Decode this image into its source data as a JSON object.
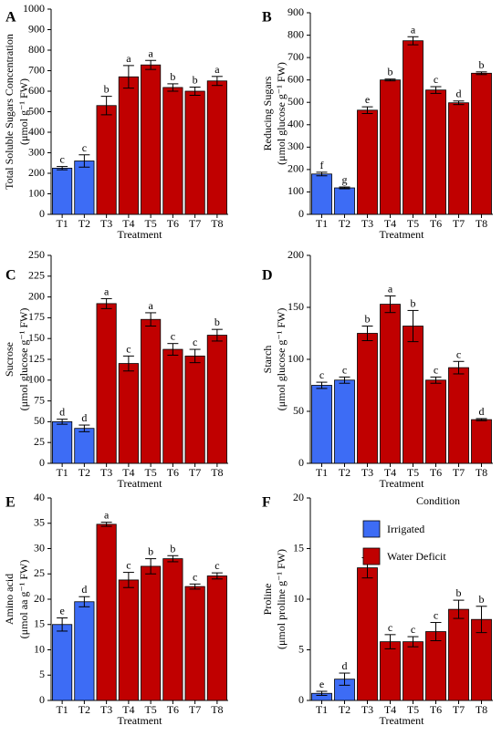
{
  "colors": {
    "irrigated": "#3d6cf5",
    "deficit": "#c00000"
  },
  "legend": {
    "title": "Condition",
    "items": [
      {
        "label": "Irrigated",
        "color": "#3d6cf5"
      },
      {
        "label": "Water Deficit",
        "color": "#c00000"
      }
    ]
  },
  "chart_data": [
    {
      "type": "bar",
      "panel": "A",
      "categories": [
        "T1",
        "T2",
        "T3",
        "T4",
        "T5",
        "T6",
        "T7",
        "T8"
      ],
      "values": [
        225,
        260,
        530,
        670,
        728,
        618,
        600,
        650
      ],
      "errors": [
        8,
        30,
        45,
        55,
        22,
        18,
        20,
        22
      ],
      "letters": [
        "c",
        "c",
        "b",
        "a",
        "a",
        "b",
        "b",
        "a"
      ],
      "groups": [
        "irrigated",
        "irrigated",
        "deficit",
        "deficit",
        "deficit",
        "deficit",
        "deficit",
        "deficit"
      ],
      "ylim": [
        0,
        1000
      ],
      "yticks": [
        0,
        100,
        200,
        300,
        400,
        500,
        600,
        700,
        800,
        900,
        1000
      ],
      "xlabel": "Treatment",
      "ylabel": [
        "Total Soluble Sugars Concentration",
        "(μmol g⁻¹ FW)"
      ]
    },
    {
      "type": "bar",
      "panel": "B",
      "categories": [
        "T1",
        "T2",
        "T3",
        "T4",
        "T5",
        "T6",
        "T7",
        "T8"
      ],
      "values": [
        180,
        118,
        465,
        600,
        775,
        555,
        498,
        630
      ],
      "errors": [
        8,
        4,
        15,
        4,
        18,
        15,
        8,
        6
      ],
      "letters": [
        "f",
        "g",
        "e",
        "b",
        "a",
        "c",
        "d",
        "b"
      ],
      "groups": [
        "irrigated",
        "irrigated",
        "deficit",
        "deficit",
        "deficit",
        "deficit",
        "deficit",
        "deficit"
      ],
      "ylim": [
        0,
        900
      ],
      "yticks": [
        0,
        100,
        200,
        300,
        400,
        500,
        600,
        700,
        800,
        900
      ],
      "xlabel": "Treatment",
      "ylabel": [
        "Reducing Sugars",
        "(μmol glucose g⁻¹ FW)"
      ]
    },
    {
      "type": "bar",
      "panel": "C",
      "categories": [
        "T1",
        "T2",
        "T3",
        "T4",
        "T5",
        "T6",
        "T7",
        "T8"
      ],
      "values": [
        50,
        42,
        192,
        120,
        173,
        137,
        129,
        154
      ],
      "errors": [
        3,
        4,
        6,
        9,
        8,
        7,
        8,
        7
      ],
      "letters": [
        "d",
        "d",
        "a",
        "c",
        "a",
        "c",
        "c",
        "b"
      ],
      "groups": [
        "irrigated",
        "irrigated",
        "deficit",
        "deficit",
        "deficit",
        "deficit",
        "deficit",
        "deficit"
      ],
      "ylim": [
        0,
        250
      ],
      "yticks": [
        0,
        25,
        50,
        75,
        100,
        125,
        150,
        175,
        200,
        225,
        250
      ],
      "xlabel": "Treatment",
      "ylabel": [
        "Sucrose",
        "(μmol glucose g⁻¹ FW)"
      ]
    },
    {
      "type": "bar",
      "panel": "D",
      "categories": [
        "T1",
        "T2",
        "T3",
        "T4",
        "T5",
        "T6",
        "T7",
        "T8"
      ],
      "values": [
        75,
        80,
        125,
        153,
        132,
        80,
        92,
        42
      ],
      "errors": [
        3,
        3,
        7,
        8,
        15,
        3,
        6,
        1
      ],
      "letters": [
        "c",
        "c",
        "b",
        "a",
        "b",
        "c",
        "c",
        "d"
      ],
      "groups": [
        "irrigated",
        "irrigated",
        "deficit",
        "deficit",
        "deficit",
        "deficit",
        "deficit",
        "deficit"
      ],
      "ylim": [
        0,
        200
      ],
      "yticks": [
        0,
        50,
        100,
        150,
        200
      ],
      "xlabel": "Treatment",
      "ylabel": [
        "Starch",
        "(μmol glucose g⁻¹ FW)"
      ]
    },
    {
      "type": "bar",
      "panel": "E",
      "categories": [
        "T1",
        "T2",
        "T3",
        "T4",
        "T5",
        "T6",
        "T7",
        "T8"
      ],
      "values": [
        15,
        19.5,
        34.8,
        23.8,
        26.5,
        28,
        22.5,
        24.6
      ],
      "errors": [
        1.3,
        1.0,
        0.4,
        1.5,
        1.5,
        0.6,
        0.5,
        0.6
      ],
      "letters": [
        "e",
        "d",
        "a",
        "c",
        "b",
        "b",
        "c",
        "c"
      ],
      "groups": [
        "irrigated",
        "irrigated",
        "deficit",
        "deficit",
        "deficit",
        "deficit",
        "deficit",
        "deficit"
      ],
      "ylim": [
        0,
        40
      ],
      "yticks": [
        0,
        5,
        10,
        15,
        20,
        25,
        30,
        35,
        40
      ],
      "xlabel": "Treatment",
      "ylabel": [
        "Amino acid",
        "(μmol aa g⁻¹ FW)"
      ]
    },
    {
      "type": "bar",
      "panel": "F",
      "categories": [
        "T1",
        "T2",
        "T3",
        "T4",
        "T5",
        "T6",
        "T7",
        "T8"
      ],
      "values": [
        0.7,
        2.1,
        13.1,
        5.8,
        5.8,
        6.8,
        9.0,
        8.0
      ],
      "errors": [
        0.2,
        0.6,
        1.0,
        0.7,
        0.5,
        0.9,
        0.9,
        1.3
      ],
      "letters": [
        "e",
        "d",
        "a",
        "c",
        "c",
        "c",
        "b",
        "b"
      ],
      "groups": [
        "irrigated",
        "irrigated",
        "deficit",
        "deficit",
        "deficit",
        "deficit",
        "deficit",
        "deficit"
      ],
      "ylim": [
        0,
        20
      ],
      "yticks": [
        0,
        5,
        10,
        15,
        20
      ],
      "xlabel": "Treatment",
      "ylabel": [
        "Proline",
        "(μmol proline g⁻¹ FW)"
      ],
      "legend": "top-right"
    }
  ]
}
